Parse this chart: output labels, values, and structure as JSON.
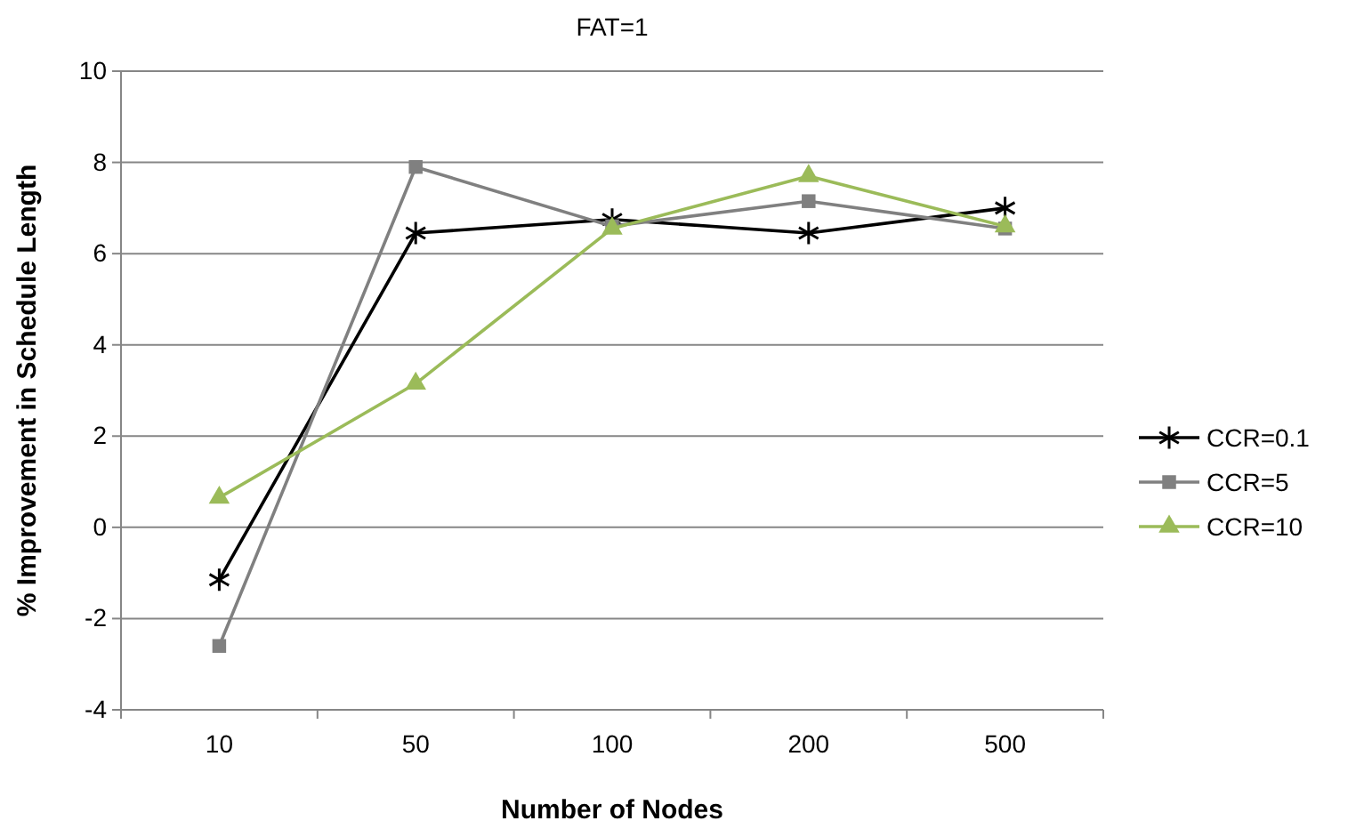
{
  "chart_data": {
    "type": "line",
    "title": "FAT=1",
    "xlabel": "Number of Nodes",
    "ylabel": "% Improvement in Schedule Length",
    "categories": [
      "10",
      "50",
      "100",
      "200",
      "500"
    ],
    "series": [
      {
        "name": "CCR=0.1",
        "color": "#000000",
        "marker": "cross",
        "values": [
          -1.15,
          6.45,
          6.75,
          6.45,
          7.0
        ]
      },
      {
        "name": "CCR=5",
        "color": "#808080",
        "marker": "square",
        "values": [
          -2.6,
          7.9,
          6.6,
          7.15,
          6.55
        ]
      },
      {
        "name": "CCR=10",
        "color": "#9bbb59",
        "marker": "triangle",
        "values": [
          0.65,
          3.15,
          6.55,
          7.7,
          6.6
        ]
      }
    ],
    "ylim": [
      -4,
      10
    ],
    "yticks": [
      -4,
      -2,
      0,
      2,
      4,
      6,
      8,
      10
    ],
    "grid": "y",
    "legend": "right"
  }
}
